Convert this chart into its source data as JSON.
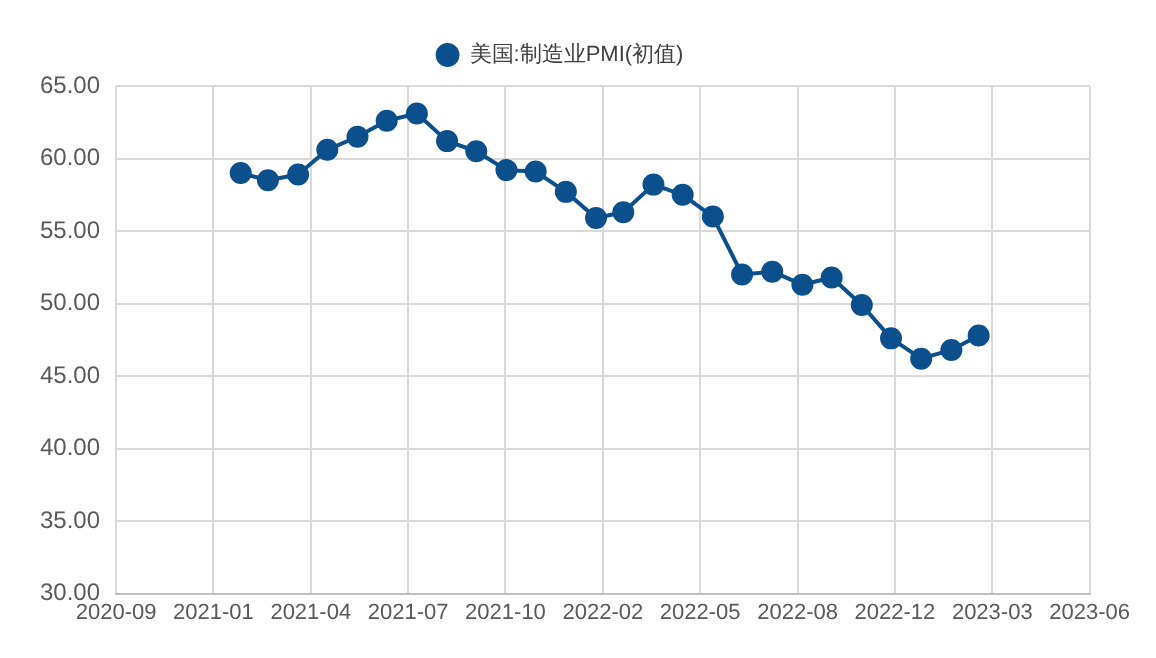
{
  "chart_data": {
    "type": "line",
    "x": [
      "2021-01-31",
      "2021-02-28",
      "2021-03-31",
      "2021-04-30",
      "2021-05-31",
      "2021-06-30",
      "2021-07-31",
      "2021-08-31",
      "2021-09-30",
      "2021-10-31",
      "2021-11-30",
      "2021-12-31",
      "2022-01-31",
      "2022-02-28",
      "2022-03-31",
      "2022-04-30",
      "2022-05-31",
      "2022-06-30",
      "2022-07-31",
      "2022-08-31",
      "2022-09-30",
      "2022-10-31",
      "2022-11-30",
      "2022-12-31",
      "2023-01-31",
      "2023-02-28"
    ],
    "series": [
      {
        "name": "美国:制造业PMI(初值)",
        "color": "#0b4f8c",
        "values": [
          59.0,
          58.5,
          58.9,
          60.6,
          61.5,
          62.6,
          63.1,
          61.2,
          60.5,
          59.2,
          59.1,
          57.7,
          55.9,
          56.3,
          58.2,
          57.5,
          56.0,
          52.0,
          52.2,
          51.3,
          51.8,
          49.9,
          47.6,
          46.2,
          46.8,
          47.8
        ]
      }
    ],
    "xlim": [
      "2020-09-25",
      "2023-06-22"
    ],
    "xticks": [
      {
        "value": "2020-09-25",
        "label": "2020-09"
      },
      {
        "value": "2021-01-03",
        "label": "2021-01"
      },
      {
        "value": "2021-04-13",
        "label": "2021-04"
      },
      {
        "value": "2021-07-22",
        "label": "2021-07"
      },
      {
        "value": "2021-10-30",
        "label": "2021-10"
      },
      {
        "value": "2022-02-07",
        "label": "2022-02"
      },
      {
        "value": "2022-05-18",
        "label": "2022-05"
      },
      {
        "value": "2022-08-26",
        "label": "2022-08"
      },
      {
        "value": "2022-12-04",
        "label": "2022-12"
      },
      {
        "value": "2023-03-14",
        "label": "2023-03"
      },
      {
        "value": "2023-06-22",
        "label": "2023-06"
      }
    ],
    "ylim": [
      30,
      65
    ],
    "yticks": [
      {
        "value": 30,
        "label": "30.00"
      },
      {
        "value": 35,
        "label": "35.00"
      },
      {
        "value": 40,
        "label": "40.00"
      },
      {
        "value": 45,
        "label": "45.00"
      },
      {
        "value": 50,
        "label": "50.00"
      },
      {
        "value": 55,
        "label": "55.00"
      },
      {
        "value": 60,
        "label": "60.00"
      },
      {
        "value": 65,
        "label": "65.00"
      }
    ],
    "grid": true,
    "legend": "top",
    "marker": "circle",
    "line_style": "solid"
  }
}
